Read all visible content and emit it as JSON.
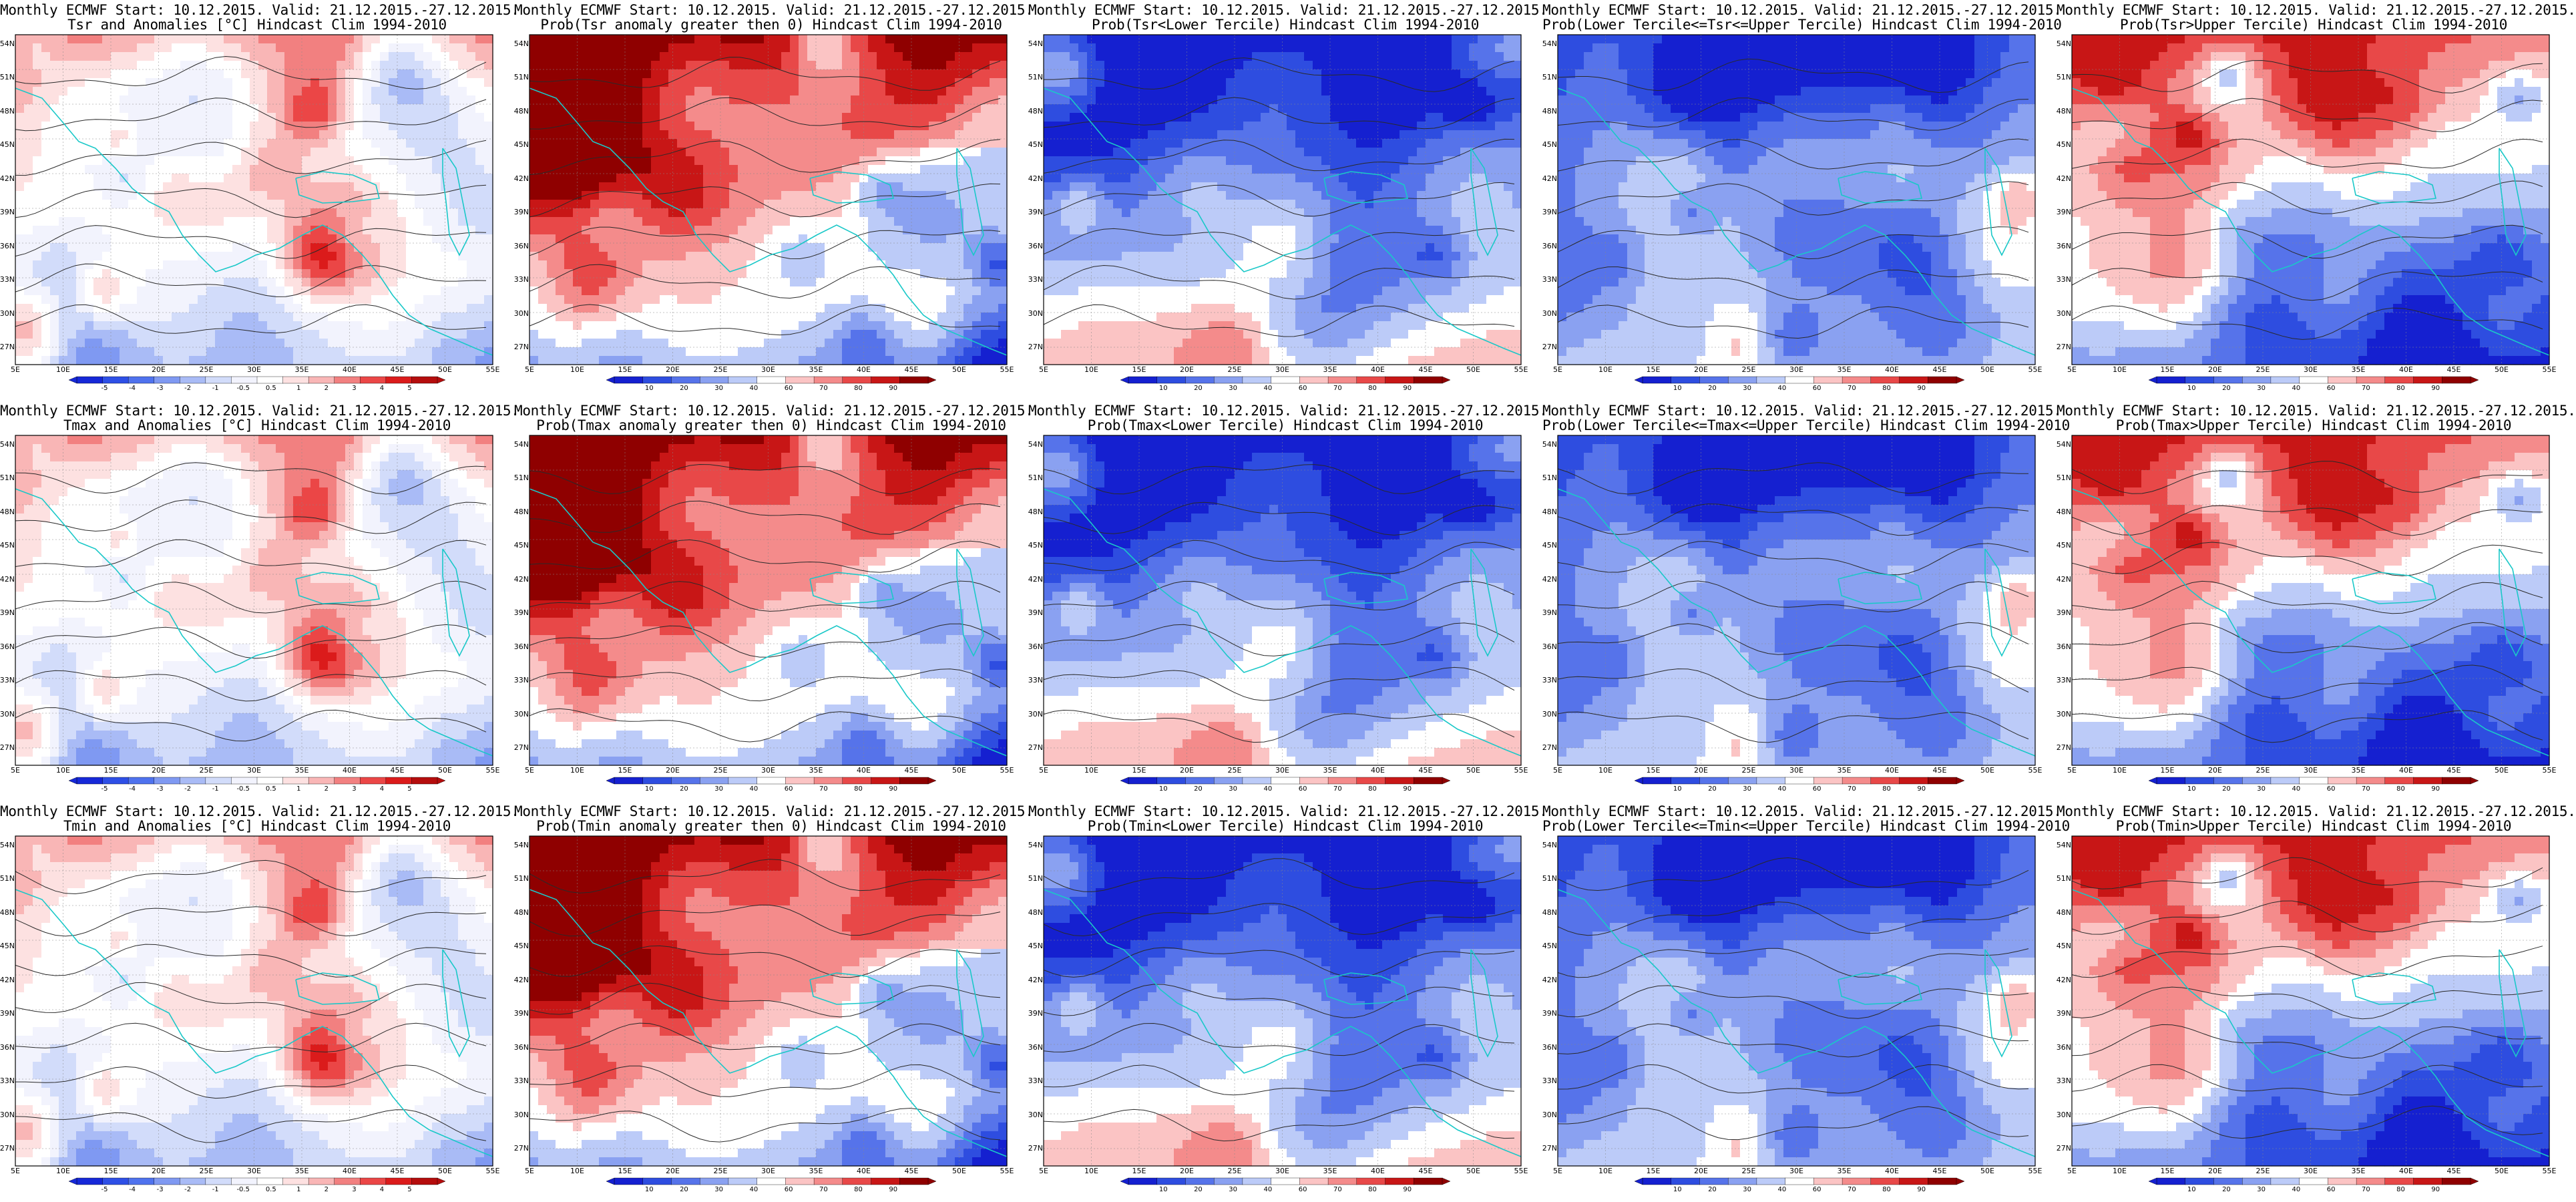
{
  "colors": {
    "anomaly": [
      "#1628d8",
      "#2e4fe6",
      "#4f72ee",
      "#7f99f2",
      "#a9bbf6",
      "#d2dcfa",
      "#f2f3fd",
      "#ffffff",
      "#fde1e1",
      "#f9b6b6",
      "#f28080",
      "#eb4646",
      "#db1b1b",
      "#b50d0d"
    ],
    "probability": [
      "#1520d0",
      "#2e4de0",
      "#5673ea",
      "#8aa1f1",
      "#bccbf8",
      "#ffffff",
      "#fbc4c4",
      "#f48b8b",
      "#e84848",
      "#c81616",
      "#8f0000"
    ],
    "coast": "#1ac8c8",
    "contour": "#2a2a2a"
  },
  "map": {
    "lat_labels": [
      "54N",
      "51N",
      "48N",
      "45N",
      "42N",
      "39N",
      "36N",
      "33N",
      "30N",
      "27N"
    ],
    "lon_labels": [
      "5E",
      "10E",
      "15E",
      "20E",
      "25E",
      "30E",
      "35E",
      "40E",
      "45E",
      "50E",
      "55E"
    ]
  },
  "colorbars": {
    "anomaly": [
      "-5",
      "-4",
      "-3",
      "-2",
      "-1",
      "-0.5",
      "0.5",
      "1",
      "2",
      "3",
      "4",
      "5"
    ],
    "probability": [
      "10",
      "20",
      "30",
      "40",
      "60",
      "70",
      "80",
      "90"
    ]
  },
  "panels": [
    {
      "title1": "Monthly ECMWF Start: 10.12.2015. Valid: 21.12.2015.-27.12.2015.",
      "title2": "Tsr and Anomalies [°C] Hindcast Clim 1994-2010",
      "type": "anomaly",
      "pattern": 0
    },
    {
      "title1": "Monthly ECMWF Start: 10.12.2015. Valid: 21.12.2015.-27.12.2015.",
      "title2": "Prob(Tsr anomaly greater then 0) Hindcast Clim 1994-2010",
      "type": "probability",
      "pattern": 1
    },
    {
      "title1": "Monthly ECMWF Start: 10.12.2015. Valid: 21.12.2015.-27.12.2015.",
      "title2": "Prob(Tsr<Lower Tercile) Hindcast Clim 1994-2010",
      "type": "probability",
      "pattern": 2
    },
    {
      "title1": "Monthly ECMWF Start: 10.12.2015. Valid: 21.12.2015.-27.12.2015.",
      "title2": "Prob(Lower Tercile<=Tsr<=Upper Tercile) Hindcast Clim 1994-2010",
      "type": "probability",
      "pattern": 3
    },
    {
      "title1": "Monthly ECMWF Start: 10.12.2015. Valid: 21.12.2015.-27.12.2015.",
      "title2": "Prob(Tsr>Upper Tercile) Hindcast Clim 1994-2010",
      "type": "probability",
      "pattern": 4
    },
    {
      "title1": "Monthly ECMWF Start: 10.12.2015. Valid: 21.12.2015.-27.12.2015.",
      "title2": "Tmax and Anomalies [°C] Hindcast Clim 1994-2010",
      "type": "anomaly",
      "pattern": 0
    },
    {
      "title1": "Monthly ECMWF Start: 10.12.2015. Valid: 21.12.2015.-27.12.2015.",
      "title2": "Prob(Tmax anomaly greater then 0) Hindcast Clim 1994-2010",
      "type": "probability",
      "pattern": 1
    },
    {
      "title1": "Monthly ECMWF Start: 10.12.2015. Valid: 21.12.2015.-27.12.2015.",
      "title2": "Prob(Tmax<Lower Tercile) Hindcast Clim 1994-2010",
      "type": "probability",
      "pattern": 2
    },
    {
      "title1": "Monthly ECMWF Start: 10.12.2015. Valid: 21.12.2015.-27.12.2015.",
      "title2": "Prob(Lower Tercile<=Tmax<=Upper Tercile) Hindcast Clim 1994-2010",
      "type": "probability",
      "pattern": 3
    },
    {
      "title1": "Monthly ECMWF Start: 10.12.2015. Valid: 21.12.2015.-27.12.2015.",
      "title2": "Prob(Tmax>Upper Tercile) Hindcast Clim 1994-2010",
      "type": "probability",
      "pattern": 4
    },
    {
      "title1": "Monthly ECMWF Start: 10.12.2015. Valid: 21.12.2015.-27.12.2015.",
      "title2": "Tmin and Anomalies [°C] Hindcast Clim 1994-2010",
      "type": "anomaly",
      "pattern": 0
    },
    {
      "title1": "Monthly ECMWF Start: 10.12.2015. Valid: 21.12.2015.-27.12.2015.",
      "title2": "Prob(Tmin anomaly greater then 0) Hindcast Clim 1994-2010",
      "type": "probability",
      "pattern": 1
    },
    {
      "title1": "Monthly ECMWF Start: 10.12.2015. Valid: 21.12.2015.-27.12.2015.",
      "title2": "Prob(Tmin<Lower Tercile) Hindcast Clim 1994-2010",
      "type": "probability",
      "pattern": 2
    },
    {
      "title1": "Monthly ECMWF Start: 10.12.2015. Valid: 21.12.2015.-27.12.2015.",
      "title2": "Prob(Lower Tercile<=Tmin<=Upper Tercile) Hindcast Clim 1994-2010",
      "type": "probability",
      "pattern": 3
    },
    {
      "title1": "Monthly ECMWF Start: 10.12.2015. Valid: 21.12.2015.-27.12.2015.",
      "title2": "Prob(Tmin>Upper Tercile) Hindcast Clim 1994-2010",
      "type": "probability",
      "pattern": 4
    }
  ]
}
